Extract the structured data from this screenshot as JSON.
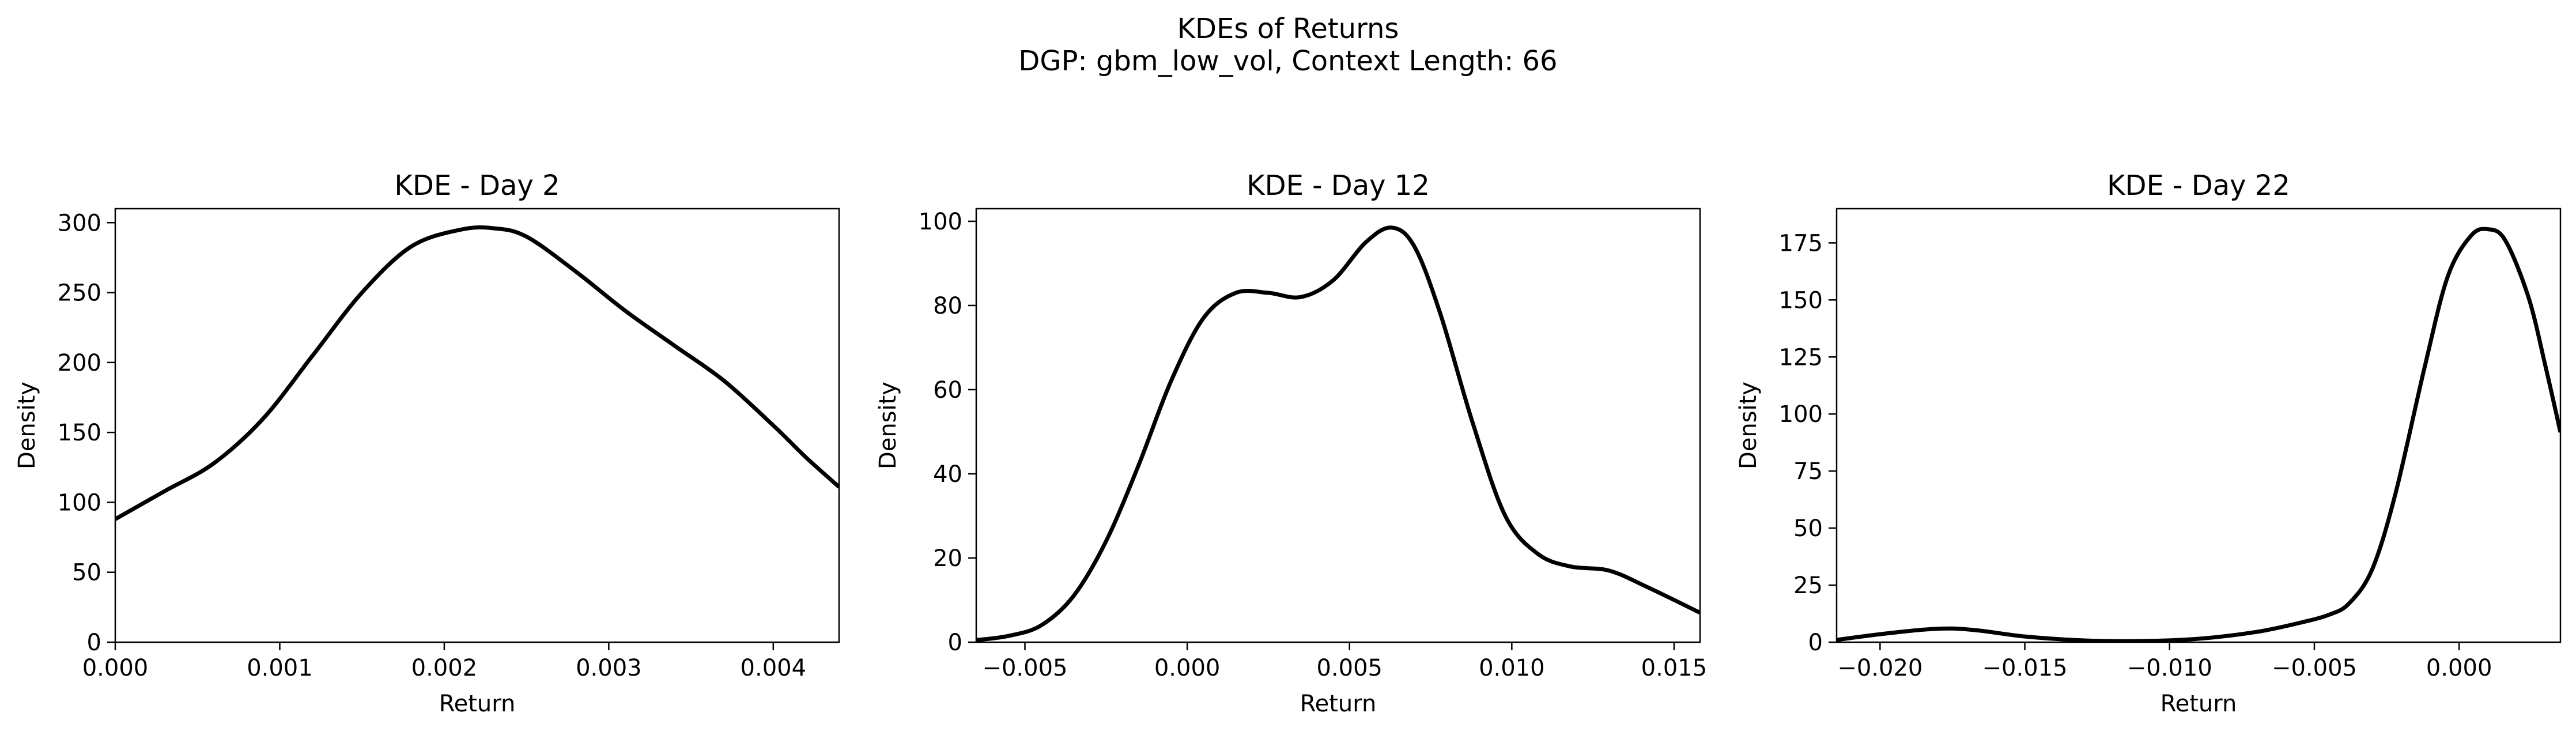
{
  "figure": {
    "title_line1": "KDEs of Returns",
    "title_line2": "DGP: gbm_low_vol, Context Length: 66"
  },
  "chart_data": [
    {
      "type": "line",
      "title": "KDE - Day 2",
      "xlabel": "Return",
      "ylabel": "Density",
      "xlim": [
        0.0,
        0.0044
      ],
      "ylim": [
        0,
        310
      ],
      "xticks": [
        0.0,
        0.001,
        0.002,
        0.003,
        0.004
      ],
      "xtick_labels": [
        "0.000",
        "0.001",
        "0.002",
        "0.003",
        "0.004"
      ],
      "yticks": [
        0,
        50,
        100,
        150,
        200,
        250,
        300
      ],
      "ytick_labels": [
        "0",
        "50",
        "100",
        "150",
        "200",
        "250",
        "300"
      ],
      "grid": false,
      "color": "#000000",
      "x": [
        0.0,
        0.0003,
        0.0006,
        0.0009,
        0.0012,
        0.0015,
        0.0018,
        0.0021,
        0.0023,
        0.0025,
        0.0028,
        0.0031,
        0.0034,
        0.0037,
        0.004,
        0.0042,
        0.0044
      ],
      "y": [
        88,
        108,
        128,
        160,
        205,
        250,
        283,
        295,
        296,
        290,
        265,
        237,
        212,
        187,
        155,
        132,
        111
      ]
    },
    {
      "type": "line",
      "title": "KDE - Day 12",
      "xlabel": "Return",
      "ylabel": "Density",
      "xlim": [
        -0.0065,
        0.0158
      ],
      "ylim": [
        0,
        103
      ],
      "xticks": [
        -0.005,
        0.0,
        0.005,
        0.01,
        0.015
      ],
      "xtick_labels": [
        "−0.005",
        "0.000",
        "0.005",
        "0.010",
        "0.015"
      ],
      "yticks": [
        0,
        20,
        40,
        60,
        80,
        100
      ],
      "ytick_labels": [
        "0",
        "20",
        "40",
        "60",
        "80",
        "100"
      ],
      "grid": false,
      "color": "#000000",
      "x": [
        -0.0065,
        -0.0055,
        -0.0045,
        -0.0035,
        -0.0025,
        -0.0015,
        -0.0005,
        0.0005,
        0.0015,
        0.0025,
        0.0035,
        0.0045,
        0.0055,
        0.0063,
        0.007,
        0.0078,
        0.0088,
        0.0098,
        0.0108,
        0.0118,
        0.013,
        0.0142,
        0.0158
      ],
      "y": [
        0.5,
        1.5,
        4,
        11,
        24,
        42,
        62,
        77,
        83,
        83,
        82,
        86,
        95,
        98.5,
        94,
        78,
        52,
        30,
        21,
        18,
        17,
        13,
        7
      ]
    },
    {
      "type": "line",
      "title": "KDE - Day 22",
      "xlabel": "Return",
      "ylabel": "Density",
      "xlim": [
        -0.0215,
        0.0035
      ],
      "ylim": [
        0,
        190
      ],
      "xticks": [
        -0.02,
        -0.015,
        -0.01,
        -0.005,
        0.0
      ],
      "xtick_labels": [
        "−0.020",
        "−0.015",
        "−0.010",
        "−0.005",
        "0.000"
      ],
      "yticks": [
        0,
        25,
        50,
        75,
        100,
        125,
        150,
        175
      ],
      "ytick_labels": [
        "0",
        "25",
        "50",
        "75",
        "100",
        "125",
        "150",
        "175"
      ],
      "grid": false,
      "color": "#000000",
      "x": [
        -0.0215,
        -0.02,
        -0.0185,
        -0.0175,
        -0.0165,
        -0.015,
        -0.013,
        -0.011,
        -0.009,
        -0.007,
        -0.0055,
        -0.0045,
        -0.0038,
        -0.003,
        -0.0022,
        -0.0012,
        -0.0004,
        0.0004,
        0.001,
        0.0016,
        0.0024,
        0.003,
        0.0035
      ],
      "y": [
        1,
        3.5,
        5.5,
        6,
        5,
        2.5,
        0.8,
        0.5,
        1.5,
        4.5,
        8.5,
        12,
        17,
        32,
        65,
        120,
        160,
        178,
        181,
        176,
        151,
        120,
        92
      ]
    }
  ]
}
